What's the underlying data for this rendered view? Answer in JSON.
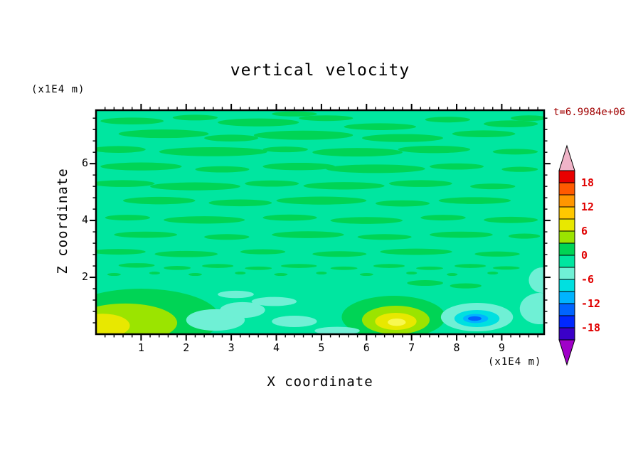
{
  "title": "vertical velocity",
  "time_label": "t=6.9984e+06",
  "x_axis": {
    "label": "X coordinate",
    "unit": "(x1E4 m)",
    "ticks": [
      1,
      2,
      3,
      4,
      5,
      6,
      7,
      8,
      9
    ]
  },
  "z_axis": {
    "label": "Z coordinate",
    "unit": "(x1E4 m)",
    "ticks": [
      2,
      4,
      6
    ]
  },
  "chart_data": {
    "type": "heatmap",
    "subtype": "filled-contour",
    "title": "vertical velocity",
    "xlabel": "X coordinate (x1E4 m)",
    "ylabel": "Z coordinate (x1E4 m)",
    "time_annotation": "t=6.9984e+06",
    "x_range": [
      0,
      9.94
    ],
    "z_range": [
      0,
      7.88
    ],
    "contour_interval": 3,
    "labeled_levels": [
      18,
      12,
      6,
      0,
      -6,
      -12,
      -18
    ],
    "colorbar": {
      "labels": [
        18,
        12,
        6,
        0,
        -6,
        -12,
        -18
      ],
      "value_min": -21,
      "value_max": 21,
      "segment_colors_bottom_to_top": [
        "#3A00C8",
        "#0028FF",
        "#0064FF",
        "#00B4FF",
        "#00E0E0",
        "#6FF0D5",
        "#00E6A0",
        "#00D455",
        "#9BE400",
        "#E8E800",
        "#FFC800",
        "#FF9600",
        "#FF5A00",
        "#E80000"
      ],
      "under_color": "#A000C8",
      "over_color": "#F0B4C8"
    },
    "field": {
      "base_color": "#00E6A0",
      "base_band": "-3..0",
      "streak_color": "#00D455",
      "streak_band": "0..3",
      "streaks": [
        [
          0.8,
          7.5,
          0.7,
          0.12
        ],
        [
          2.2,
          7.62,
          0.5,
          0.1
        ],
        [
          3.6,
          7.45,
          0.9,
          0.14
        ],
        [
          5.1,
          7.6,
          0.6,
          0.1
        ],
        [
          6.3,
          7.3,
          0.8,
          0.12
        ],
        [
          7.8,
          7.55,
          0.5,
          0.1
        ],
        [
          9.2,
          7.4,
          0.6,
          0.12
        ],
        [
          4.4,
          7.75,
          0.5,
          0.09
        ],
        [
          1.5,
          7.05,
          1.0,
          0.15
        ],
        [
          3.0,
          6.9,
          0.6,
          0.12
        ],
        [
          4.6,
          7.0,
          1.1,
          0.16
        ],
        [
          6.8,
          6.9,
          0.9,
          0.14
        ],
        [
          8.6,
          7.05,
          0.7,
          0.12
        ],
        [
          9.6,
          7.6,
          0.4,
          0.1
        ],
        [
          0.5,
          6.5,
          0.6,
          0.12
        ],
        [
          2.6,
          6.42,
          1.2,
          0.16
        ],
        [
          4.2,
          6.5,
          0.5,
          0.1
        ],
        [
          5.8,
          6.4,
          1.0,
          0.15
        ],
        [
          7.5,
          6.5,
          0.8,
          0.13
        ],
        [
          9.3,
          6.42,
          0.5,
          0.1
        ],
        [
          1.0,
          5.9,
          0.9,
          0.14
        ],
        [
          2.8,
          5.8,
          0.6,
          0.11
        ],
        [
          4.5,
          5.9,
          0.8,
          0.13
        ],
        [
          6.2,
          5.82,
          1.1,
          0.15
        ],
        [
          8.0,
          5.9,
          0.6,
          0.11
        ],
        [
          9.4,
          5.8,
          0.4,
          0.09
        ],
        [
          0.6,
          5.3,
          0.7,
          0.12
        ],
        [
          2.2,
          5.2,
          1.0,
          0.14
        ],
        [
          3.9,
          5.3,
          0.6,
          0.11
        ],
        [
          5.5,
          5.22,
          0.9,
          0.13
        ],
        [
          7.2,
          5.3,
          0.7,
          0.12
        ],
        [
          8.8,
          5.2,
          0.5,
          0.1
        ],
        [
          1.4,
          4.7,
          0.8,
          0.13
        ],
        [
          3.2,
          4.62,
          0.7,
          0.12
        ],
        [
          5.0,
          4.7,
          1.0,
          0.14
        ],
        [
          6.8,
          4.6,
          0.6,
          0.11
        ],
        [
          8.4,
          4.7,
          0.8,
          0.12
        ],
        [
          0.7,
          4.1,
          0.5,
          0.1
        ],
        [
          2.4,
          4.02,
          0.9,
          0.13
        ],
        [
          4.3,
          4.1,
          0.6,
          0.11
        ],
        [
          6.0,
          4.0,
          0.8,
          0.12
        ],
        [
          7.7,
          4.1,
          0.5,
          0.1
        ],
        [
          9.2,
          4.02,
          0.6,
          0.11
        ],
        [
          1.1,
          3.5,
          0.7,
          0.11
        ],
        [
          2.9,
          3.42,
          0.5,
          0.1
        ],
        [
          4.7,
          3.5,
          0.8,
          0.12
        ],
        [
          6.4,
          3.42,
          0.6,
          0.1
        ],
        [
          8.1,
          3.5,
          0.7,
          0.11
        ],
        [
          9.5,
          3.45,
          0.35,
          0.09
        ],
        [
          0.5,
          2.9,
          0.6,
          0.1
        ],
        [
          2.0,
          2.82,
          0.7,
          0.11
        ],
        [
          3.7,
          2.9,
          0.5,
          0.09
        ],
        [
          5.4,
          2.82,
          0.6,
          0.1
        ],
        [
          7.1,
          2.9,
          0.8,
          0.11
        ],
        [
          8.9,
          2.82,
          0.5,
          0.09
        ],
        [
          0.9,
          2.42,
          0.4,
          0.08
        ],
        [
          1.8,
          2.33,
          0.3,
          0.07
        ],
        [
          2.7,
          2.4,
          0.35,
          0.07
        ],
        [
          3.6,
          2.32,
          0.3,
          0.06
        ],
        [
          4.5,
          2.4,
          0.4,
          0.07
        ],
        [
          5.5,
          2.32,
          0.3,
          0.06
        ],
        [
          6.5,
          2.4,
          0.35,
          0.07
        ],
        [
          7.4,
          2.32,
          0.3,
          0.06
        ],
        [
          8.3,
          2.4,
          0.35,
          0.07
        ],
        [
          9.1,
          2.33,
          0.3,
          0.06
        ],
        [
          0.4,
          2.1,
          0.15,
          0.05
        ],
        [
          1.3,
          2.15,
          0.12,
          0.05
        ],
        [
          2.2,
          2.1,
          0.15,
          0.05
        ],
        [
          3.2,
          2.15,
          0.12,
          0.05
        ],
        [
          4.1,
          2.1,
          0.15,
          0.05
        ],
        [
          5.0,
          2.15,
          0.12,
          0.05
        ],
        [
          6.0,
          2.1,
          0.15,
          0.05
        ],
        [
          7.0,
          2.15,
          0.12,
          0.05
        ],
        [
          7.9,
          2.1,
          0.12,
          0.05
        ],
        [
          8.8,
          2.15,
          0.12,
          0.05
        ],
        [
          7.3,
          1.8,
          0.4,
          0.1
        ],
        [
          8.2,
          1.7,
          0.35,
          0.09
        ]
      ],
      "features": [
        {
          "name": "updraft-bottom-left",
          "layers": [
            {
              "color": "#00D455",
              "x": 1.0,
              "z": 0.55,
              "rx": 1.75,
              "rz": 1.05
            },
            {
              "color": "#9BE400",
              "x": 0.65,
              "z": 0.4,
              "rx": 1.15,
              "rz": 0.68
            },
            {
              "color": "#E8E800",
              "x": 0.15,
              "z": 0.3,
              "rx": 0.6,
              "rz": 0.42
            }
          ]
        },
        {
          "name": "downdraft-cyan-left",
          "layers": [
            {
              "color": "#6FF0D5",
              "x": 2.65,
              "z": 0.5,
              "rx": 0.65,
              "rz": 0.38
            },
            {
              "color": "#6FF0D5",
              "x": 3.25,
              "z": 0.85,
              "rx": 0.5,
              "rz": 0.28
            },
            {
              "color": "#6FF0D5",
              "x": 3.95,
              "z": 1.15,
              "rx": 0.5,
              "rz": 0.16
            },
            {
              "color": "#6FF0D5",
              "x": 3.1,
              "z": 1.4,
              "rx": 0.4,
              "rz": 0.13
            },
            {
              "color": "#6FF0D5",
              "x": 4.4,
              "z": 0.45,
              "rx": 0.5,
              "rz": 0.2
            }
          ]
        },
        {
          "name": "updraft-center",
          "layers": [
            {
              "color": "#00D455",
              "x": 6.6,
              "z": 0.6,
              "rx": 1.15,
              "rz": 0.75
            },
            {
              "color": "#9BE400",
              "x": 6.65,
              "z": 0.5,
              "rx": 0.75,
              "rz": 0.5
            },
            {
              "color": "#E8E800",
              "x": 6.65,
              "z": 0.45,
              "rx": 0.46,
              "rz": 0.3
            },
            {
              "color": "#F8F850",
              "x": 6.67,
              "z": 0.42,
              "rx": 0.2,
              "rz": 0.13
            }
          ]
        },
        {
          "name": "downdraft-blue",
          "layers": [
            {
              "color": "#6FF0D5",
              "x": 8.45,
              "z": 0.6,
              "rx": 0.8,
              "rz": 0.5
            },
            {
              "color": "#00E0E0",
              "x": 8.45,
              "z": 0.55,
              "rx": 0.5,
              "rz": 0.3
            },
            {
              "color": "#00B4FF",
              "x": 8.42,
              "z": 0.55,
              "rx": 0.28,
              "rz": 0.16
            },
            {
              "color": "#0064FF",
              "x": 8.4,
              "z": 0.55,
              "rx": 0.15,
              "rz": 0.08
            }
          ]
        },
        {
          "name": "downdraft-right-edge",
          "layers": [
            {
              "color": "#6FF0D5",
              "x": 9.85,
              "z": 0.9,
              "rx": 0.45,
              "rz": 0.55
            },
            {
              "color": "#6FF0D5",
              "x": 9.9,
              "z": 1.9,
              "rx": 0.3,
              "rz": 0.45
            }
          ]
        },
        {
          "name": "cyan-wisp-bottom-center",
          "layers": [
            {
              "color": "#6FF0D5",
              "x": 5.35,
              "z": 0.12,
              "rx": 0.5,
              "rz": 0.14
            }
          ]
        }
      ]
    }
  }
}
